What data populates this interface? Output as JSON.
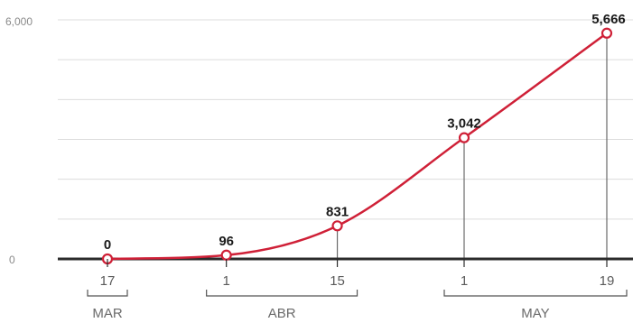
{
  "chart_data": {
    "type": "line",
    "title": "",
    "xlabel": "",
    "ylabel": "",
    "ylim": [
      0,
      6000
    ],
    "y_ticks": [
      "6,000",
      "0"
    ],
    "grid": true,
    "legend": "none",
    "series": [
      {
        "color": "#cf2037",
        "points": [
          {
            "date": "2020-03-17",
            "value": 0,
            "label": "0"
          },
          {
            "date": "2020-04-01",
            "value": 96,
            "label": "96"
          },
          {
            "date": "2020-04-15",
            "value": 831,
            "label": "831"
          },
          {
            "date": "2020-05-01",
            "value": 3042,
            "label": "3,042"
          },
          {
            "date": "2020-05-19",
            "value": 5666,
            "label": "5,666"
          }
        ]
      }
    ],
    "x_ticks": [
      {
        "date": "2020-03-17",
        "label": "17"
      },
      {
        "date": "2020-04-01",
        "label": "1"
      },
      {
        "date": "2020-04-15",
        "label": "15"
      },
      {
        "date": "2020-05-01",
        "label": "1"
      },
      {
        "date": "2020-05-19",
        "label": "19"
      }
    ],
    "month_groups": [
      {
        "label": "MAR",
        "start": "2020-03-17",
        "end": "2020-03-17"
      },
      {
        "label": "ABR",
        "start": "2020-04-01",
        "end": "2020-04-15"
      },
      {
        "label": "MAY",
        "start": "2020-05-01",
        "end": "2020-05-19"
      }
    ]
  }
}
